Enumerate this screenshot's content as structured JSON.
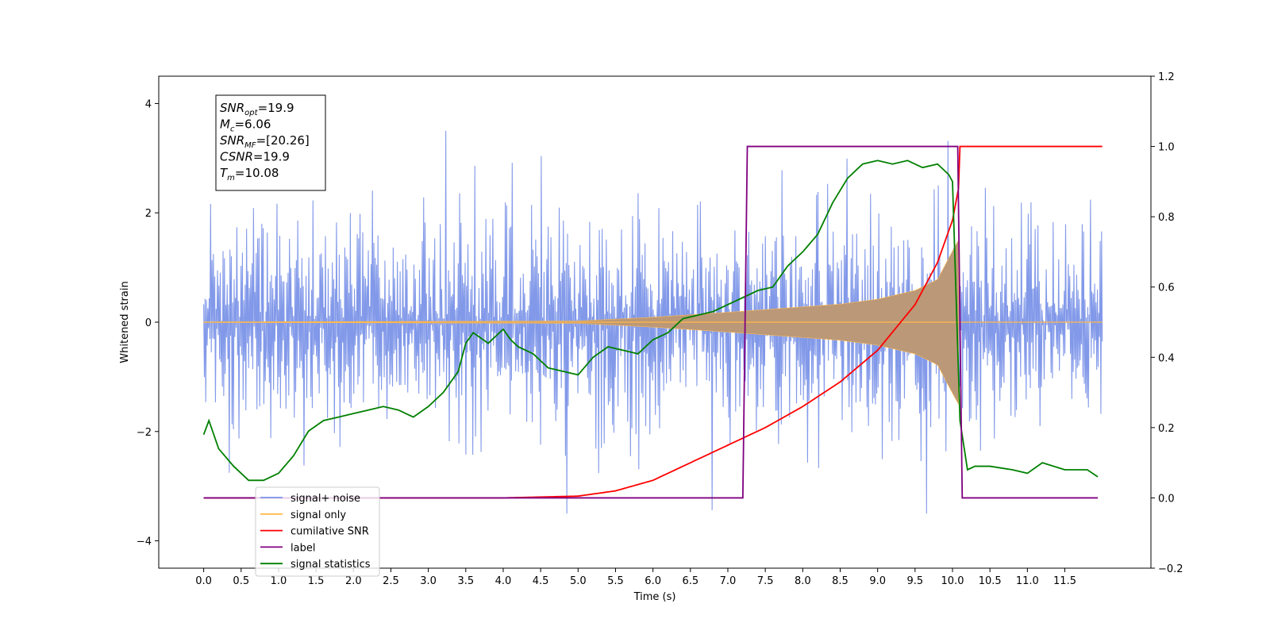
{
  "chart_data": {
    "type": "line",
    "title": "",
    "xlabel": "Time (s)",
    "ylabel": "Whitened strain",
    "xlim": [
      -0.6,
      12.65
    ],
    "ylim": [
      -4.5,
      4.5
    ],
    "y2lim": [
      -0.2,
      1.2
    ],
    "x_ticks": [
      0.0,
      0.5,
      1.0,
      1.5,
      2.0,
      2.5,
      3.0,
      3.5,
      4.0,
      4.5,
      5.0,
      5.5,
      6.0,
      6.5,
      7.0,
      7.5,
      8.0,
      8.5,
      9.0,
      9.5,
      10.0,
      10.5,
      11.0,
      11.5
    ],
    "x_tick_labels": [
      "0.0",
      "0.5",
      "1.0",
      "1.5",
      "2.0",
      "2.5",
      "3.0",
      "3.5",
      "4.0",
      "4.5",
      "5.0",
      "5.5",
      "6.0",
      "6.5",
      "7.0",
      "7.5",
      "8.0",
      "8.5",
      "9.0",
      "9.5",
      "10.0",
      "10.5",
      "11.0",
      "11.5"
    ],
    "y_ticks": [
      -4,
      -2,
      0,
      2,
      4
    ],
    "y_tick_labels": [
      "−4",
      "−2",
      "0",
      "2",
      "4"
    ],
    "y2_ticks": [
      -0.2,
      0.0,
      0.2,
      0.4,
      0.6,
      0.8,
      1.0,
      1.2
    ],
    "y2_tick_labels": [
      "−0.2",
      "0.0",
      "0.2",
      "0.4",
      "0.6",
      "0.8",
      "1.0",
      "1.2"
    ],
    "grid": false,
    "legend_position": "lower-left",
    "annotation": {
      "lines": [
        {
          "base": "SNR",
          "sub": "opt",
          "rest": "=19.9"
        },
        {
          "base": "M",
          "sub": "c",
          "rest": "=6.06"
        },
        {
          "base": "SNR",
          "sub": "MF",
          "rest": "=[20.26]"
        },
        {
          "base": "CSNR",
          "sub": "",
          "rest": "=19.9"
        },
        {
          "base": "T",
          "sub": "m",
          "rest": "=10.08"
        }
      ]
    },
    "series": [
      {
        "name": "signal+ noise",
        "color": "#7b93e8",
        "axis": "left",
        "kind": "noise",
        "x_range": [
          0.0,
          12.0
        ],
        "sample_count": 1300,
        "amplitude_std": 1.05,
        "envelope_max": 3.5
      },
      {
        "name": "signal only",
        "color": "#ffb94a",
        "axis": "left",
        "kind": "chirp",
        "x_range": [
          0.0,
          10.08
        ],
        "amplitude_points": [
          [
            0.0,
            0.005
          ],
          [
            5.0,
            0.02
          ],
          [
            6.0,
            0.09
          ],
          [
            7.0,
            0.18
          ],
          [
            8.0,
            0.28
          ],
          [
            8.5,
            0.33
          ],
          [
            9.0,
            0.42
          ],
          [
            9.5,
            0.58
          ],
          [
            9.8,
            0.78
          ],
          [
            10.0,
            1.3
          ],
          [
            10.08,
            1.5
          ]
        ],
        "fill_color": "#bb9877"
      },
      {
        "name": "cumilative SNR",
        "color": "#ff0000",
        "axis": "right",
        "x": [
          0.0,
          4.0,
          5.0,
          5.5,
          6.0,
          6.5,
          7.0,
          7.5,
          8.0,
          8.5,
          9.0,
          9.5,
          9.8,
          10.0,
          10.08,
          10.1,
          11.5,
          12.0
        ],
        "values": [
          0.0,
          0.0,
          0.005,
          0.02,
          0.05,
          0.1,
          0.15,
          0.2,
          0.26,
          0.33,
          0.42,
          0.55,
          0.67,
          0.79,
          0.88,
          1.0,
          1.0,
          1.0
        ]
      },
      {
        "name": "label",
        "color": "#800080",
        "axis": "right",
        "x": [
          0.0,
          7.2,
          7.26,
          10.07,
          10.13,
          11.94
        ],
        "values": [
          0.0,
          0.0,
          1.0,
          1.0,
          0.0,
          0.0
        ]
      },
      {
        "name": "signal statistics",
        "color": "#008000",
        "axis": "right",
        "x": [
          0.0,
          0.07,
          0.2,
          0.4,
          0.6,
          0.8,
          1.0,
          1.2,
          1.4,
          1.6,
          1.8,
          2.0,
          2.2,
          2.4,
          2.6,
          2.8,
          3.0,
          3.2,
          3.4,
          3.5,
          3.6,
          3.8,
          4.0,
          4.1,
          4.2,
          4.4,
          4.6,
          4.8,
          5.0,
          5.2,
          5.4,
          5.6,
          5.8,
          6.0,
          6.2,
          6.4,
          6.6,
          6.8,
          7.0,
          7.2,
          7.4,
          7.6,
          7.8,
          8.0,
          8.2,
          8.4,
          8.6,
          8.8,
          9.0,
          9.2,
          9.4,
          9.6,
          9.8,
          9.95,
          10.0,
          10.1,
          10.2,
          10.3,
          10.5,
          10.8,
          11.0,
          11.2,
          11.5,
          11.8,
          11.94
        ],
        "values": [
          0.18,
          0.22,
          0.14,
          0.09,
          0.05,
          0.05,
          0.07,
          0.12,
          0.19,
          0.22,
          0.23,
          0.24,
          0.25,
          0.26,
          0.25,
          0.23,
          0.26,
          0.3,
          0.36,
          0.44,
          0.47,
          0.44,
          0.48,
          0.45,
          0.43,
          0.41,
          0.37,
          0.36,
          0.35,
          0.4,
          0.43,
          0.42,
          0.41,
          0.45,
          0.47,
          0.51,
          0.52,
          0.53,
          0.55,
          0.57,
          0.59,
          0.6,
          0.66,
          0.7,
          0.75,
          0.84,
          0.91,
          0.95,
          0.96,
          0.95,
          0.96,
          0.94,
          0.95,
          0.92,
          0.9,
          0.22,
          0.08,
          0.09,
          0.09,
          0.08,
          0.07,
          0.1,
          0.08,
          0.08,
          0.06
        ]
      }
    ]
  }
}
